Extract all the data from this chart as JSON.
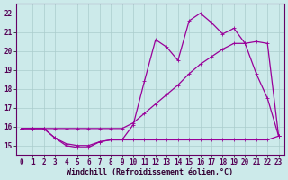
{
  "xlabel": "Windchill (Refroidissement éolien,°C)",
  "background_color": "#cceaea",
  "grid_color": "#aacccc",
  "line_color": "#990099",
  "x_data": [
    0,
    1,
    2,
    3,
    4,
    5,
    6,
    7,
    8,
    9,
    10,
    11,
    12,
    13,
    14,
    15,
    16,
    17,
    18,
    19,
    20,
    21,
    22,
    23
  ],
  "line1_data": [
    15.9,
    15.9,
    15.9,
    15.4,
    15.0,
    14.9,
    14.9,
    15.2,
    15.3,
    15.3,
    16.1,
    18.4,
    20.6,
    20.2,
    19.5,
    21.6,
    22.0,
    21.5,
    20.9,
    21.2,
    20.4,
    18.8,
    17.5,
    15.5
  ],
  "line2_data": [
    15.9,
    15.9,
    15.9,
    15.9,
    15.9,
    15.9,
    15.9,
    15.9,
    15.9,
    15.9,
    16.2,
    16.7,
    17.2,
    17.7,
    18.2,
    18.8,
    19.3,
    19.7,
    20.1,
    20.4,
    20.4,
    20.5,
    20.4,
    15.5
  ],
  "line3_data": [
    15.9,
    15.9,
    15.9,
    15.4,
    15.1,
    15.0,
    15.0,
    15.2,
    15.3,
    15.3,
    15.3,
    15.3,
    15.3,
    15.3,
    15.3,
    15.3,
    15.3,
    15.3,
    15.3,
    15.3,
    15.3,
    15.3,
    15.3,
    15.5
  ],
  "ylim": [
    14.5,
    22.5
  ],
  "xlim": [
    -0.5,
    23.5
  ],
  "yticks": [
    15,
    16,
    17,
    18,
    19,
    20,
    21,
    22
  ],
  "xticks": [
    0,
    1,
    2,
    3,
    4,
    5,
    6,
    7,
    8,
    9,
    10,
    11,
    12,
    13,
    14,
    15,
    16,
    17,
    18,
    19,
    20,
    21,
    22,
    23
  ]
}
